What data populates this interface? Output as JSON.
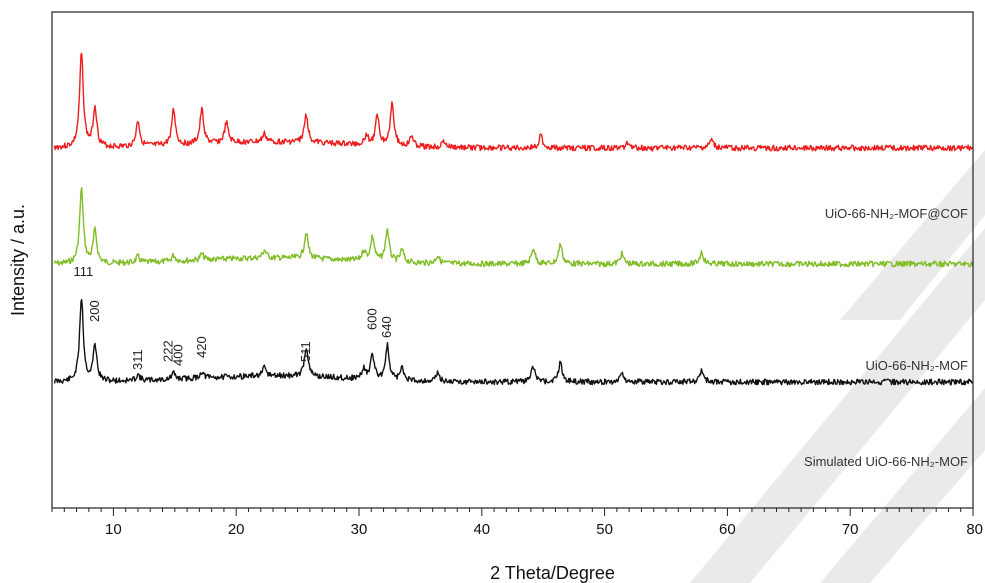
{
  "chart_data": {
    "type": "line",
    "xlabel": "2 Theta/Degree",
    "ylabel": "Intensity / a.u.",
    "xlim": [
      5,
      80
    ],
    "xticks": [
      10,
      20,
      30,
      40,
      50,
      60,
      70,
      80
    ],
    "yticks": "none",
    "grid": false,
    "series": [
      {
        "name": "UiO-66-NH₂-MOF@COF",
        "color": "#ee1c1c",
        "baseline": 0.68,
        "noise_seed": 3,
        "peaks": [
          {
            "x": 7.4,
            "h": 0.47
          },
          {
            "x": 8.5,
            "h": 0.2
          },
          {
            "x": 12.0,
            "h": 0.13
          },
          {
            "x": 14.9,
            "h": 0.18
          },
          {
            "x": 17.2,
            "h": 0.17
          },
          {
            "x": 19.2,
            "h": 0.1
          },
          {
            "x": 22.3,
            "h": 0.04
          },
          {
            "x": 25.7,
            "h": 0.14
          },
          {
            "x": 30.6,
            "h": 0.05
          },
          {
            "x": 31.5,
            "h": 0.15
          },
          {
            "x": 32.7,
            "h": 0.22
          },
          {
            "x": 34.3,
            "h": 0.05
          },
          {
            "x": 36.9,
            "h": 0.03
          },
          {
            "x": 44.8,
            "h": 0.06
          },
          {
            "x": 51.9,
            "h": 0.03
          },
          {
            "x": 58.7,
            "h": 0.04
          }
        ]
      },
      {
        "name": "UiO-66-NH₂-MOF",
        "color": "#80bd26",
        "baseline": 1.26,
        "noise_seed": 7,
        "peaks": [
          {
            "x": 7.4,
            "h": 0.37
          },
          {
            "x": 8.5,
            "h": 0.16
          },
          {
            "x": 12.0,
            "h": 0.03
          },
          {
            "x": 14.9,
            "h": 0.03
          },
          {
            "x": 17.2,
            "h": 0.03
          },
          {
            "x": 22.3,
            "h": 0.04
          },
          {
            "x": 25.7,
            "h": 0.13
          },
          {
            "x": 30.4,
            "h": 0.05
          },
          {
            "x": 31.1,
            "h": 0.12
          },
          {
            "x": 32.3,
            "h": 0.16
          },
          {
            "x": 33.5,
            "h": 0.06
          },
          {
            "x": 36.4,
            "h": 0.04
          },
          {
            "x": 44.2,
            "h": 0.08
          },
          {
            "x": 46.4,
            "h": 0.1
          },
          {
            "x": 51.4,
            "h": 0.05
          },
          {
            "x": 57.9,
            "h": 0.06
          }
        ]
      },
      {
        "name": "Simulated UiO-66-NH₂-MOF",
        "color": "#111111",
        "baseline": 1.85,
        "noise_seed": 11,
        "peaks": [
          {
            "x": 7.4,
            "h": 0.42
          },
          {
            "x": 8.5,
            "h": 0.18
          },
          {
            "x": 12.0,
            "h": 0.03
          },
          {
            "x": 14.9,
            "h": 0.03
          },
          {
            "x": 17.2,
            "h": 0.03
          },
          {
            "x": 22.3,
            "h": 0.04
          },
          {
            "x": 25.7,
            "h": 0.15
          },
          {
            "x": 30.4,
            "h": 0.05
          },
          {
            "x": 31.1,
            "h": 0.12
          },
          {
            "x": 32.3,
            "h": 0.17
          },
          {
            "x": 33.5,
            "h": 0.06
          },
          {
            "x": 36.4,
            "h": 0.04
          },
          {
            "x": 44.2,
            "h": 0.08
          },
          {
            "x": 46.4,
            "h": 0.1
          },
          {
            "x": 51.4,
            "h": 0.05
          },
          {
            "x": 57.9,
            "h": 0.06
          }
        ]
      }
    ],
    "annotations": [
      {
        "text": "111",
        "x": 7.4
      },
      {
        "text": "200",
        "x": 8.5
      },
      {
        "text": "311",
        "x": 12.0
      },
      {
        "text": "222",
        "x": 14.5
      },
      {
        "text": "400",
        "x": 15.3
      },
      {
        "text": "420",
        "x": 17.2
      },
      {
        "text": "511",
        "x": 25.7
      },
      {
        "text": "600",
        "x": 31.1
      },
      {
        "text": "640",
        "x": 32.3
      }
    ]
  }
}
